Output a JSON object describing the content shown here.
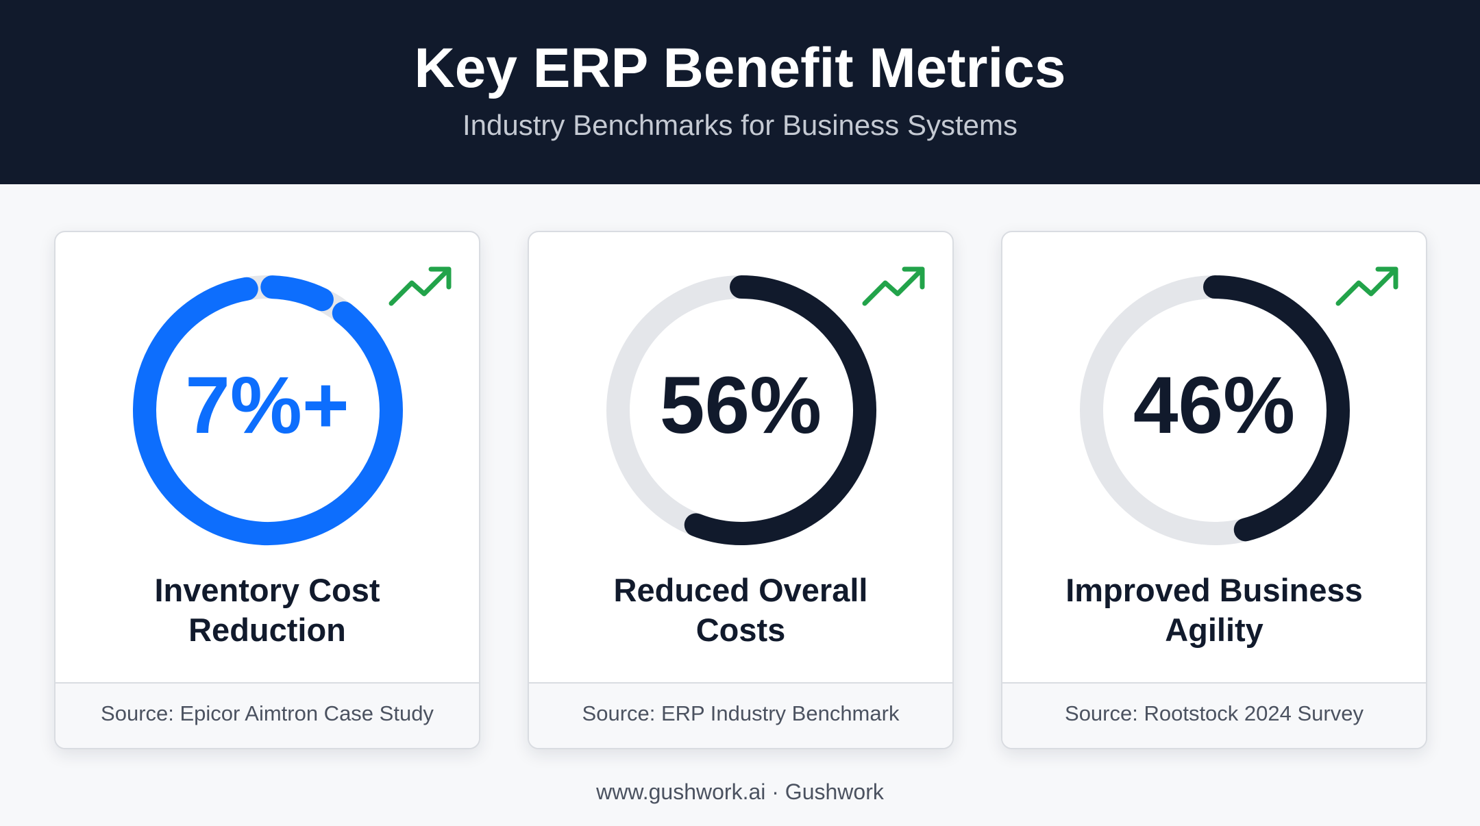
{
  "header": {
    "title": "Key ERP Benefit Metrics",
    "subtitle": "Industry Benchmarks for Business Systems"
  },
  "colors": {
    "header_bg": "#111a2c",
    "accent_blue": "#0d6efd",
    "dark_ring": "#111a2c",
    "track_gray": "#e4e6ea",
    "trend_green": "#22a34a"
  },
  "cards": [
    {
      "value": "7%+",
      "label_line1": "Inventory Cost",
      "label_line2": "Reduction",
      "source": "Source: Epicor Aimtron Case Study",
      "progress_fraction": 0.9,
      "ring_color": "#0d6efd",
      "value_color": "#0d6efd",
      "trend_icon": "trending-up-icon"
    },
    {
      "value": "56%",
      "label_line1": "Reduced Overall",
      "label_line2": "Costs",
      "source": "Source: ERP Industry Benchmark",
      "progress_fraction": 0.56,
      "ring_color": "#111a2c",
      "value_color": "#111a2c",
      "trend_icon": "trending-up-icon"
    },
    {
      "value": "46%",
      "label_line1": "Improved Business",
      "label_line2": "Agility",
      "source": "Source: Rootstock 2024 Survey",
      "progress_fraction": 0.46,
      "ring_color": "#111a2c",
      "value_color": "#111a2c",
      "trend_icon": "trending-up-icon"
    }
  ],
  "footer": {
    "text": "www.gushwork.ai · Gushwork"
  }
}
